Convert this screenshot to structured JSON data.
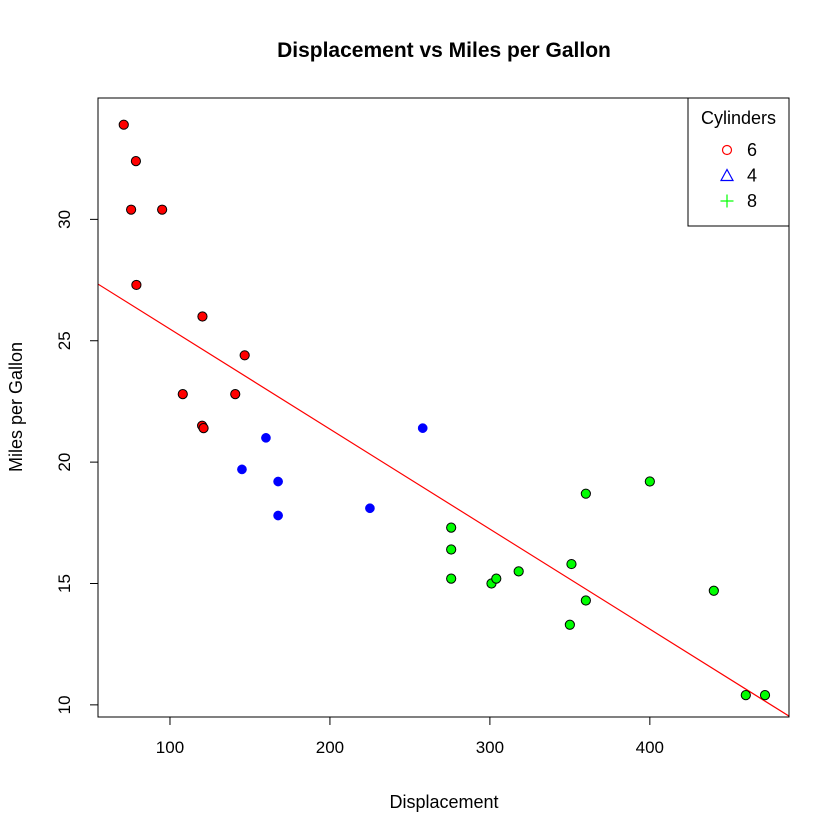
{
  "chart_data": {
    "type": "scatter",
    "title": "Displacement vs Miles per Gallon",
    "xlabel": "Displacement",
    "ylabel": "Miles per Gallon",
    "xlim": [
      55,
      487
    ],
    "ylim": [
      9.5,
      35.0
    ],
    "xticks": [
      100,
      200,
      300,
      400
    ],
    "yticks": [
      10,
      15,
      20,
      25,
      30
    ],
    "grid": false,
    "legend": {
      "title": "Cylinders",
      "placement": "top-right",
      "entries": [
        {
          "label": "6",
          "color": "#ff0000",
          "symbol": "circle"
        },
        {
          "label": "4",
          "color": "#0000ff",
          "symbol": "triangle"
        },
        {
          "label": "8",
          "color": "#00ff00",
          "symbol": "plus"
        }
      ]
    },
    "series": [
      {
        "color": "#ff0000",
        "outlined": true,
        "points": [
          [
            71.1,
            33.9
          ],
          [
            75.7,
            30.4
          ],
          [
            78.7,
            32.4
          ],
          [
            79.0,
            27.3
          ],
          [
            95.1,
            30.4
          ],
          [
            108.0,
            22.8
          ],
          [
            120.1,
            21.5
          ],
          [
            120.3,
            26.0
          ],
          [
            121.0,
            21.4
          ],
          [
            140.8,
            22.8
          ],
          [
            146.7,
            24.4
          ]
        ]
      },
      {
        "color": "#0000ff",
        "outlined": false,
        "points": [
          [
            145.0,
            19.7
          ],
          [
            160.0,
            21.0
          ],
          [
            167.6,
            19.2
          ],
          [
            167.6,
            17.8
          ],
          [
            225.0,
            18.1
          ],
          [
            258.0,
            21.4
          ]
        ]
      },
      {
        "color": "#00ff00",
        "outlined": true,
        "points": [
          [
            275.8,
            16.4
          ],
          [
            275.8,
            17.3
          ],
          [
            275.8,
            15.2
          ],
          [
            301.0,
            15.0
          ],
          [
            304.0,
            15.2
          ],
          [
            318.0,
            15.5
          ],
          [
            350.0,
            13.3
          ],
          [
            351.0,
            15.8
          ],
          [
            360.0,
            18.7
          ],
          [
            360.0,
            14.3
          ],
          [
            400.0,
            19.2
          ],
          [
            440.0,
            14.7
          ],
          [
            460.0,
            10.4
          ],
          [
            472.0,
            10.4
          ]
        ]
      }
    ],
    "regression_line": {
      "color": "#ff0000",
      "intercept": 29.6,
      "slope": -0.0412
    }
  }
}
